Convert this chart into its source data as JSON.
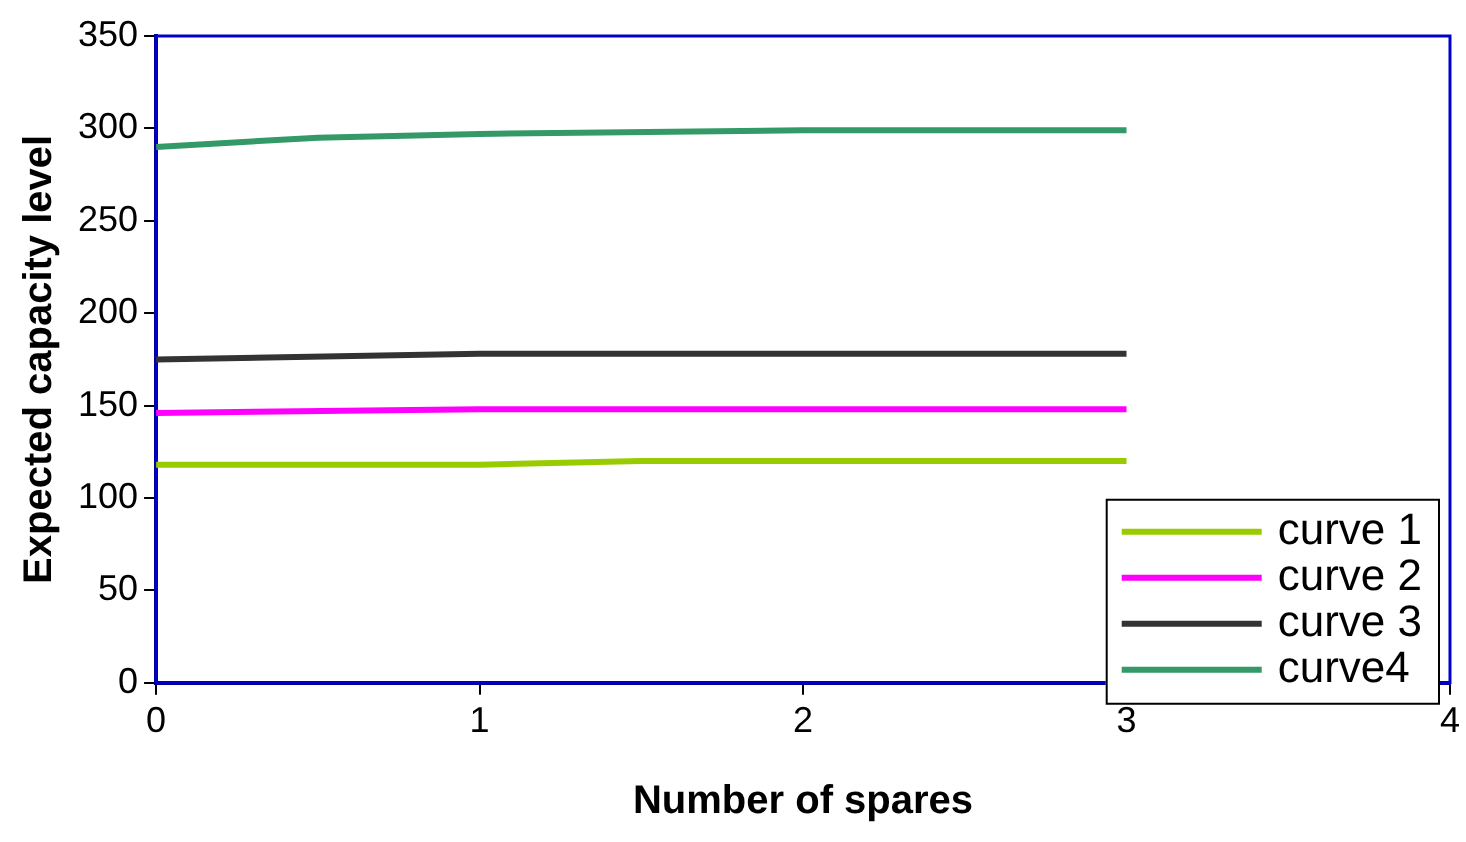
{
  "chart_data": {
    "type": "line",
    "xlabel": "Number of spares",
    "ylabel": "Expected capacity level",
    "xlim": [
      0,
      4
    ],
    "xticks": [
      0,
      1,
      2,
      3,
      4
    ],
    "ylim": [
      0,
      350
    ],
    "yticks": [
      0,
      50,
      100,
      150,
      200,
      250,
      300,
      350
    ],
    "grid": false,
    "legend": "bottom right",
    "marker": "none",
    "line_style": "solid",
    "series": [
      {
        "name": "curve 1",
        "color": "#99cc00",
        "x": [
          0,
          1,
          1.5,
          2,
          3
        ],
        "values": [
          118,
          118,
          120,
          120,
          120
        ]
      },
      {
        "name": "curve 2",
        "color": "#ff00ff",
        "x": [
          0,
          1,
          2,
          3
        ],
        "values": [
          146,
          148,
          148,
          148
        ]
      },
      {
        "name": "curve 3",
        "color": "#333333",
        "x": [
          0,
          1,
          2,
          3
        ],
        "values": [
          175,
          178,
          178,
          178
        ]
      },
      {
        "name": "curve4",
        "color": "#339966",
        "x": [
          0,
          0.5,
          1,
          2,
          3
        ],
        "values": [
          290,
          295,
          297,
          299,
          299
        ]
      }
    ]
  }
}
